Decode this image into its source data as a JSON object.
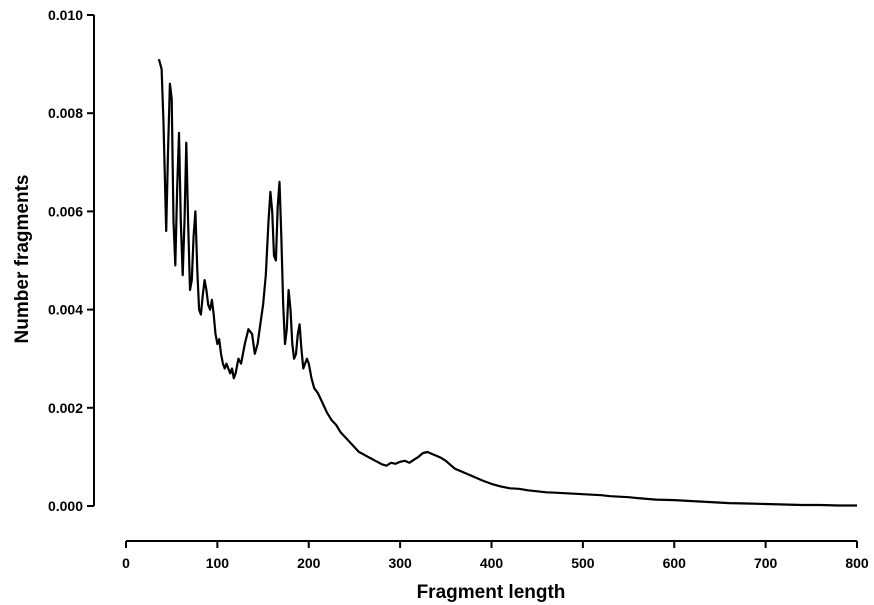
{
  "chart_data": {
    "type": "line",
    "title": "",
    "xlabel": "Fragment length",
    "ylabel": "Number fragments",
    "xlim": [
      0,
      800
    ],
    "ylim": [
      0,
      0.01
    ],
    "x_ticks": [
      0,
      100,
      200,
      300,
      400,
      500,
      600,
      700,
      800
    ],
    "x_tick_labels": [
      "0",
      "100",
      "200",
      "300",
      "400",
      "500",
      "600",
      "700",
      "800"
    ],
    "y_ticks": [
      0,
      0.002,
      0.004,
      0.006,
      0.008,
      0.01
    ],
    "y_tick_labels": [
      "0.000",
      "0.002",
      "0.004",
      "0.006",
      "0.008",
      "0.010"
    ],
    "grid": false,
    "legend": "none",
    "line_color": "#000000",
    "series": [
      {
        "x": [
          36,
          39,
          41,
          44,
          46,
          48,
          50,
          52,
          54,
          56,
          58,
          60,
          62,
          64,
          66,
          68,
          70,
          72,
          74,
          76,
          78,
          80,
          82,
          84,
          86,
          88,
          90,
          92,
          94,
          96,
          98,
          100,
          102,
          104,
          106,
          108,
          110,
          112,
          114,
          116,
          118,
          120,
          123,
          126,
          130,
          134,
          138,
          141,
          144,
          147,
          150,
          153,
          156,
          158,
          160,
          162,
          164,
          166,
          168,
          170,
          172,
          174,
          176,
          178,
          180,
          182,
          184,
          186,
          188,
          190,
          192,
          194,
          196,
          198,
          200,
          203,
          206,
          210,
          215,
          220,
          225,
          230,
          235,
          240,
          245,
          250,
          255,
          260,
          265,
          270,
          275,
          280,
          285,
          290,
          295,
          300,
          305,
          310,
          315,
          320,
          325,
          330,
          335,
          340,
          345,
          350,
          355,
          360,
          370,
          380,
          390,
          400,
          410,
          420,
          430,
          440,
          450,
          460,
          470,
          480,
          490,
          500,
          510,
          520,
          530,
          540,
          550,
          560,
          580,
          600,
          620,
          640,
          660,
          680,
          700,
          720,
          740,
          760,
          780,
          800
        ],
        "y": [
          0.0091,
          0.0089,
          0.0078,
          0.0056,
          0.0072,
          0.0086,
          0.0083,
          0.0058,
          0.0049,
          0.0065,
          0.0076,
          0.0058,
          0.0047,
          0.0058,
          0.0074,
          0.0058,
          0.0044,
          0.0046,
          0.0055,
          0.006,
          0.0048,
          0.004,
          0.0039,
          0.0043,
          0.0046,
          0.0044,
          0.0041,
          0.004,
          0.0042,
          0.0039,
          0.0035,
          0.0033,
          0.0034,
          0.0031,
          0.0029,
          0.0028,
          0.0029,
          0.0028,
          0.0027,
          0.0028,
          0.0026,
          0.0027,
          0.003,
          0.0029,
          0.0033,
          0.0036,
          0.0035,
          0.0031,
          0.0033,
          0.0037,
          0.0041,
          0.0047,
          0.0058,
          0.0064,
          0.006,
          0.0051,
          0.005,
          0.0061,
          0.0066,
          0.0055,
          0.0041,
          0.0033,
          0.0036,
          0.0044,
          0.004,
          0.0033,
          0.003,
          0.0031,
          0.0035,
          0.0037,
          0.0032,
          0.0028,
          0.0029,
          0.003,
          0.0029,
          0.0026,
          0.0024,
          0.0023,
          0.0021,
          0.0019,
          0.00175,
          0.00165,
          0.0015,
          0.0014,
          0.0013,
          0.0012,
          0.0011,
          0.00105,
          0.001,
          0.00095,
          0.0009,
          0.00085,
          0.00082,
          0.00088,
          0.00086,
          0.0009,
          0.00092,
          0.00088,
          0.00094,
          0.001,
          0.00108,
          0.0011,
          0.00106,
          0.00102,
          0.00098,
          0.00092,
          0.00084,
          0.00076,
          0.00068,
          0.0006,
          0.00052,
          0.00045,
          0.0004,
          0.00036,
          0.00035,
          0.00032,
          0.0003,
          0.00028,
          0.00027,
          0.00026,
          0.00025,
          0.00024,
          0.00023,
          0.00022,
          0.0002,
          0.00019,
          0.00018,
          0.00016,
          0.00013,
          0.00012,
          0.0001,
          8e-05,
          6e-05,
          5e-05,
          4e-05,
          3e-05,
          2e-05,
          2e-05,
          1e-05,
          1e-05
        ]
      }
    ]
  }
}
